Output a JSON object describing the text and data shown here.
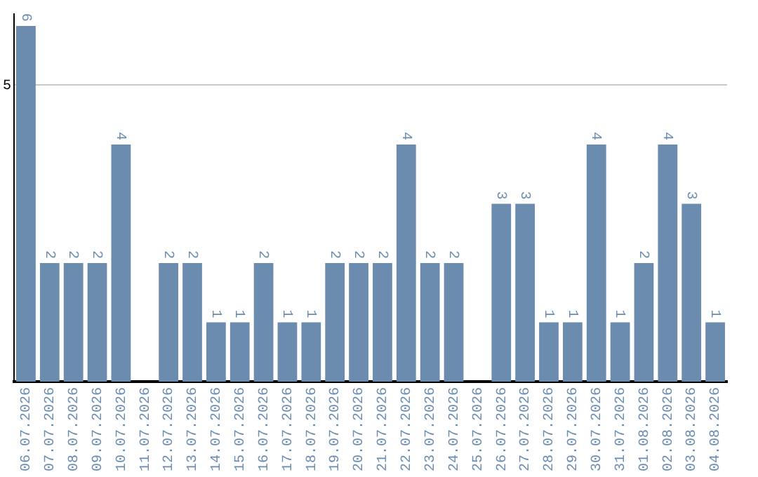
{
  "chart_data": {
    "type": "bar",
    "categories": [
      "06.07.2026",
      "07.07.2026",
      "08.07.2026",
      "09.07.2026",
      "10.07.2026",
      "11.07.2026",
      "12.07.2026",
      "13.07.2026",
      "14.07.2026",
      "15.07.2026",
      "16.07.2026",
      "17.07.2026",
      "18.07.2026",
      "19.07.2026",
      "20.07.2026",
      "21.07.2026",
      "22.07.2026",
      "23.07.2026",
      "24.07.2026",
      "25.07.2026",
      "26.07.2026",
      "27.07.2026",
      "28.07.2026",
      "29.07.2026",
      "30.07.2026",
      "31.07.2026",
      "01.08.2026",
      "02.08.2026",
      "03.08.2026",
      "04.08.2026"
    ],
    "values": [
      6,
      2,
      2,
      2,
      4,
      null,
      2,
      2,
      1,
      1,
      2,
      1,
      1,
      2,
      2,
      2,
      4,
      2,
      2,
      null,
      3,
      3,
      1,
      1,
      4,
      1,
      2,
      4,
      3,
      1
    ],
    "color": "#6b8cae",
    "ylim": [
      0,
      6.2
    ],
    "yticks": [
      5
    ],
    "grid": "y",
    "data_labels": true
  }
}
